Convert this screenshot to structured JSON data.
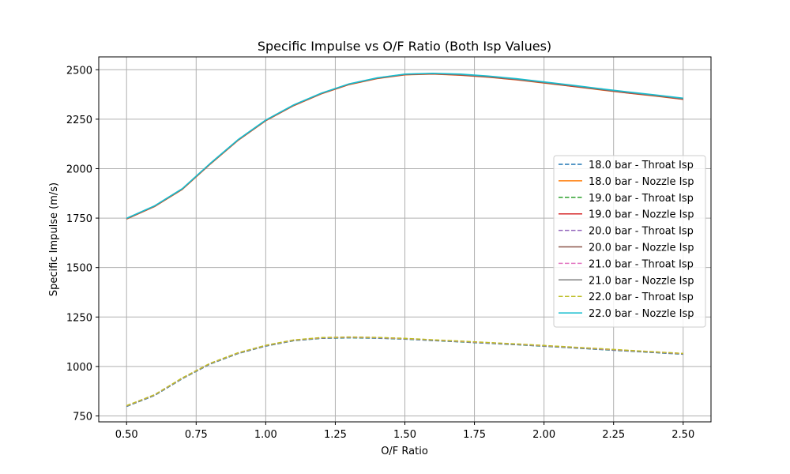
{
  "chart_data": {
    "type": "line",
    "title": "Specific Impulse vs O/F Ratio (Both Isp Values)",
    "xlabel": "O/F Ratio",
    "ylabel": "Specific Impulse (m/s)",
    "xlim": [
      0.4,
      2.6
    ],
    "ylim": [
      720,
      2565
    ],
    "xticks": [
      0.5,
      0.75,
      1.0,
      1.25,
      1.5,
      1.75,
      2.0,
      2.25,
      2.5
    ],
    "xtick_labels": [
      "0.50",
      "0.75",
      "1.00",
      "1.25",
      "1.50",
      "1.75",
      "2.00",
      "2.25",
      "2.50"
    ],
    "yticks": [
      750,
      1000,
      1250,
      1500,
      1750,
      2000,
      2250,
      2500
    ],
    "ytick_labels": [
      "750",
      "1000",
      "1250",
      "1500",
      "1750",
      "2000",
      "2250",
      "2500"
    ],
    "grid": true,
    "legend_position": "center-right",
    "x": [
      0.5,
      0.6,
      0.7,
      0.8,
      0.9,
      1.0,
      1.1,
      1.2,
      1.3,
      1.4,
      1.5,
      1.6,
      1.7,
      1.8,
      1.9,
      2.0,
      2.1,
      2.2,
      2.3,
      2.4,
      2.5
    ],
    "series": [
      {
        "name": "18.0 bar - Throat Isp",
        "style": "dashed",
        "color": "#1f77b4",
        "values": [
          798,
          853,
          938,
          1012,
          1065,
          1103,
          1130,
          1142,
          1145,
          1143,
          1138,
          1131,
          1124,
          1117,
          1110,
          1102,
          1094,
          1086,
          1078,
          1070,
          1062
        ]
      },
      {
        "name": "18.0 bar - Nozzle Isp",
        "style": "solid",
        "color": "#ff7f0e",
        "values": [
          1745,
          1808,
          1895,
          2022,
          2142,
          2242,
          2318,
          2378,
          2425,
          2455,
          2474,
          2478,
          2472,
          2462,
          2449,
          2433,
          2416,
          2399,
          2382,
          2367,
          2350
        ]
      },
      {
        "name": "19.0 bar - Throat Isp",
        "style": "dashed",
        "color": "#2ca02c",
        "values": [
          799,
          854,
          939,
          1013,
          1066,
          1104,
          1131,
          1143,
          1146,
          1144,
          1139,
          1132,
          1125,
          1118,
          1111,
          1103,
          1095,
          1087,
          1079,
          1071,
          1063
        ]
      },
      {
        "name": "19.0 bar - Nozzle Isp",
        "style": "solid",
        "color": "#d62728",
        "values": [
          1746,
          1809,
          1896,
          2023,
          2143,
          2243,
          2319,
          2379,
          2426,
          2456,
          2475,
          2479,
          2473,
          2463,
          2450,
          2434,
          2417,
          2400,
          2383,
          2368,
          2351
        ]
      },
      {
        "name": "20.0 bar - Throat Isp",
        "style": "dashed",
        "color": "#9467bd",
        "values": [
          800,
          855,
          940,
          1014,
          1067,
          1105,
          1132,
          1144,
          1147,
          1145,
          1140,
          1133,
          1126,
          1119,
          1112,
          1104,
          1096,
          1088,
          1080,
          1072,
          1064
        ]
      },
      {
        "name": "20.0 bar - Nozzle Isp",
        "style": "solid",
        "color": "#8c564b",
        "values": [
          1747,
          1810,
          1897,
          2024,
          2144,
          2244,
          2320,
          2380,
          2427,
          2457,
          2476,
          2480,
          2474,
          2464,
          2451,
          2435,
          2418,
          2401,
          2384,
          2369,
          2352
        ]
      },
      {
        "name": "21.0 bar - Throat Isp",
        "style": "dashed",
        "color": "#e377c2",
        "values": [
          801,
          856,
          941,
          1015,
          1068,
          1106,
          1133,
          1145,
          1148,
          1146,
          1141,
          1134,
          1127,
          1120,
          1113,
          1105,
          1097,
          1089,
          1081,
          1073,
          1065
        ]
      },
      {
        "name": "21.0 bar - Nozzle Isp",
        "style": "solid",
        "color": "#7f7f7f",
        "values": [
          1748,
          1811,
          1898,
          2025,
          2145,
          2245,
          2321,
          2381,
          2428,
          2458,
          2477,
          2481,
          2476,
          2466,
          2453,
          2437,
          2420,
          2403,
          2386,
          2371,
          2354
        ]
      },
      {
        "name": "22.0 bar - Throat Isp",
        "style": "dashed",
        "color": "#bcbd22",
        "values": [
          802,
          857,
          942,
          1016,
          1069,
          1107,
          1134,
          1146,
          1149,
          1147,
          1142,
          1135,
          1128,
          1121,
          1114,
          1106,
          1098,
          1090,
          1082,
          1074,
          1066
        ]
      },
      {
        "name": "22.0 bar - Nozzle Isp",
        "style": "solid",
        "color": "#17becf",
        "values": [
          1749,
          1812,
          1899,
          2026,
          2146,
          2246,
          2322,
          2382,
          2429,
          2459,
          2478,
          2482,
          2478,
          2468,
          2455,
          2439,
          2422,
          2405,
          2388,
          2373,
          2356
        ]
      }
    ]
  }
}
